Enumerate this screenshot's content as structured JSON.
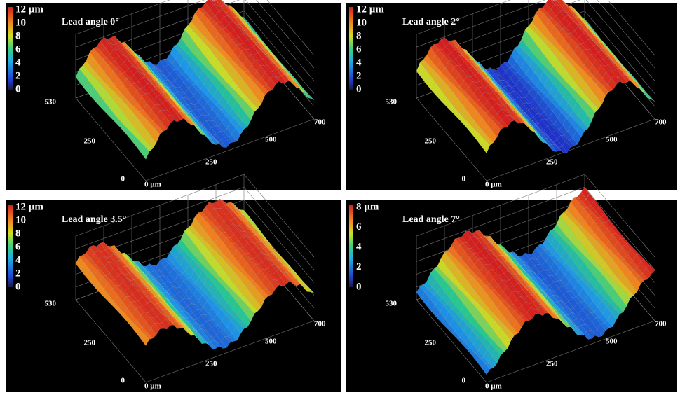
{
  "panels": [
    {
      "title": "Lead angle 0°",
      "colorbar": [
        "12 µm",
        "10",
        "8",
        "6",
        "4",
        "2",
        "0"
      ],
      "y_axis": [
        "530",
        "250",
        "0"
      ],
      "x_axis": [
        "0 µm",
        "250",
        "500",
        "700"
      ]
    },
    {
      "title": "Lead angle 2°",
      "colorbar": [
        "12 µm",
        "10",
        "8",
        "6",
        "4",
        "2",
        "0"
      ],
      "y_axis": [
        "530",
        "250",
        "0"
      ],
      "x_axis": [
        "0 µm",
        "250",
        "500",
        "700"
      ]
    },
    {
      "title": "Lead angle 3.5°",
      "colorbar": [
        "12 µm",
        "10",
        "8",
        "6",
        "4",
        "2",
        "0"
      ],
      "y_axis": [
        "530",
        "250",
        "0"
      ],
      "x_axis": [
        "0 µm",
        "250",
        "500",
        "700"
      ]
    },
    {
      "title": "Lead angle 7°",
      "colorbar": [
        "8 µm",
        "6",
        "4",
        "2",
        "0"
      ],
      "y_axis": [
        "530",
        "250",
        "0"
      ],
      "x_axis": [
        "0 µm",
        "250",
        "500",
        "700"
      ]
    }
  ]
}
